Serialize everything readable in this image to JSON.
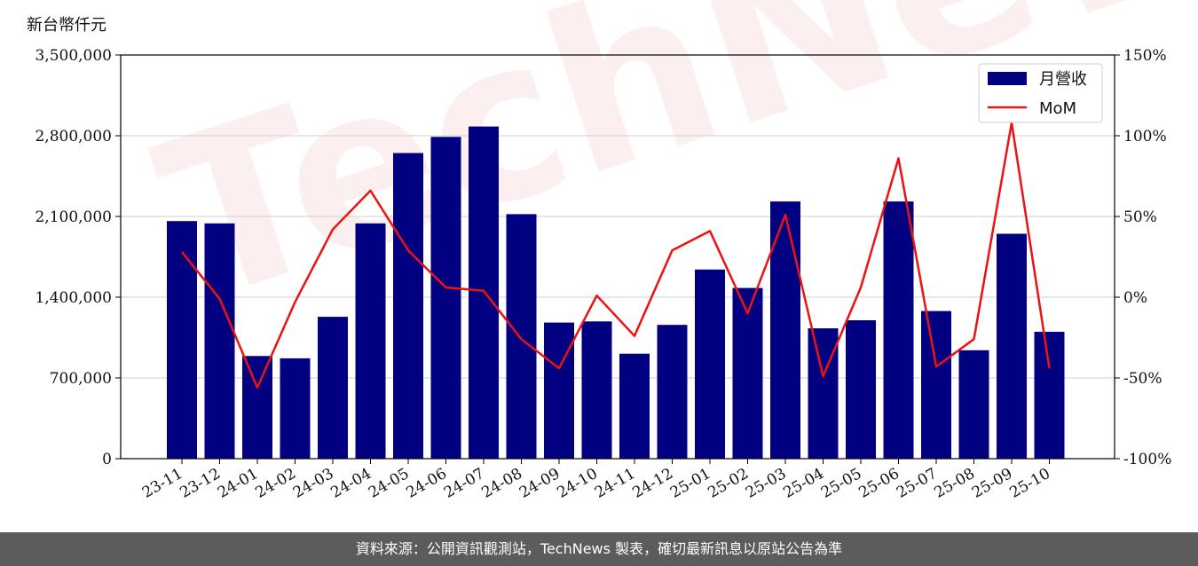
{
  "unit_label": "新台幣仟元",
  "watermark": "TechNews",
  "footer": "資料來源：公開資訊觀測站，TechNews 製表，確切最新訊息以原站公告為準",
  "colors": {
    "bar": "#000080",
    "line": "#ee1111",
    "footer_bg": "#5c5c5c"
  },
  "chart_data": {
    "type": "bar",
    "categories": [
      "23-11",
      "23-12",
      "24-01",
      "24-02",
      "24-03",
      "24-04",
      "24-05",
      "24-06",
      "24-07",
      "24-08",
      "24-09",
      "24-10",
      "24-11",
      "24-12",
      "25-01",
      "25-02",
      "25-03",
      "25-04",
      "25-05",
      "25-06",
      "25-07",
      "25-08",
      "25-09",
      "25-10"
    ],
    "series": [
      {
        "name": "月營收",
        "type": "bar",
        "axis": "left",
        "values": [
          2060000,
          2040000,
          890000,
          870000,
          1230000,
          2040000,
          2650000,
          2790000,
          2880000,
          2120000,
          1180000,
          1190000,
          910000,
          1160000,
          1640000,
          1480000,
          2230000,
          1130000,
          1200000,
          2230000,
          1280000,
          940000,
          1950000,
          1100000
        ]
      },
      {
        "name": "MoM",
        "type": "line",
        "axis": "right",
        "values": [
          28,
          -1,
          -56,
          -3,
          42,
          66,
          29,
          6,
          4,
          -26,
          -44,
          1,
          -24,
          29,
          41,
          -10,
          51,
          -49,
          6,
          86,
          -43,
          -26,
          108,
          -44
        ]
      }
    ],
    "left_axis": {
      "range": [
        0,
        3500000
      ],
      "ticks": [
        0,
        700000,
        1400000,
        2100000,
        2800000,
        3500000
      ],
      "tick_labels": [
        "0",
        "700,000",
        "1,400,000",
        "2,100,000",
        "2,800,000",
        "3,500,000"
      ]
    },
    "right_axis": {
      "range": [
        -100,
        150
      ],
      "ticks": [
        -100,
        -50,
        0,
        50,
        100,
        150
      ],
      "tick_labels": [
        "-100%",
        "-50%",
        "0%",
        "50%",
        "100%",
        "150%"
      ]
    },
    "grid": "horizontal",
    "legend_position": "top-right"
  }
}
